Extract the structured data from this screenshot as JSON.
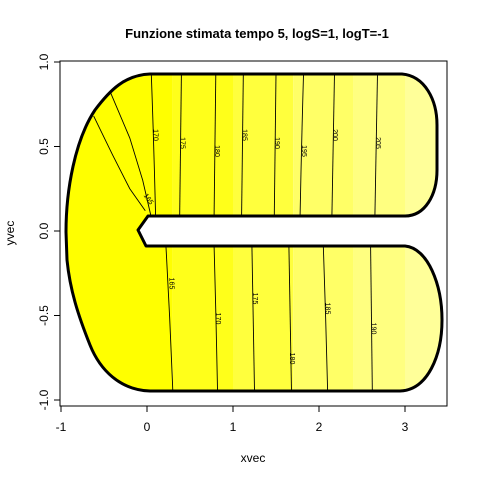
{
  "chart_data": {
    "type": "contour",
    "title": "Funzione stimata tempo 5, logS=1, logT=-1",
    "xlabel": "xvec",
    "ylabel": "yvec",
    "xlim": [
      -1.0,
      3.5
    ],
    "ylim": [
      -1.0,
      1.0
    ],
    "x_ticks": [
      -1,
      0,
      1,
      2,
      3
    ],
    "y_ticks": [
      -1.0,
      -0.5,
      0.0,
      0.5,
      1.0
    ],
    "x_tick_labels": [
      "-1",
      "0",
      "1",
      "2",
      "3"
    ],
    "y_tick_labels": [
      "-1.0",
      "-0.5",
      "0.0",
      "0.5",
      "1.0"
    ],
    "fill_bands": [
      {
        "x_from": -1.0,
        "x_to": 0.3,
        "color": "#ffff00"
      },
      {
        "x_from": 0.3,
        "x_to": 1.0,
        "color": "#ffff1a"
      },
      {
        "x_from": 1.0,
        "x_to": 1.7,
        "color": "#ffff3d"
      },
      {
        "x_from": 1.7,
        "x_to": 2.4,
        "color": "#ffff66"
      },
      {
        "x_from": 2.4,
        "x_to": 3.0,
        "color": "#ffff80"
      },
      {
        "x_from": 3.0,
        "x_to": 3.5,
        "color": "#ffff99"
      }
    ],
    "upper_contours": [
      {
        "level": "170",
        "x_top": 0.05,
        "x_bottom": 0.1
      },
      {
        "level": "175",
        "x_top": 0.4,
        "x_bottom": 0.38
      },
      {
        "level": "180",
        "x_top": 0.8,
        "x_bottom": 0.78
      },
      {
        "level": "185",
        "x_top": 1.12,
        "x_bottom": 1.1
      },
      {
        "level": "190",
        "x_top": 1.5,
        "x_bottom": 1.48
      },
      {
        "level": "195",
        "x_top": 1.82,
        "x_bottom": 1.78
      },
      {
        "level": "200",
        "x_top": 2.18,
        "x_bottom": 2.15
      },
      {
        "level": "205",
        "x_top": 2.68,
        "x_bottom": 2.65
      }
    ],
    "lower_contours": [
      {
        "level": "165",
        "x_top": 0.22,
        "x_bottom": 0.3
      },
      {
        "level": "170",
        "x_top": 0.78,
        "x_bottom": 0.82
      },
      {
        "level": "175",
        "x_top": 1.22,
        "x_bottom": 1.25
      },
      {
        "level": "180",
        "x_top": 1.65,
        "x_bottom": 1.68
      },
      {
        "level": "185",
        "x_top": 2.05,
        "x_bottom": 2.1
      },
      {
        "level": "190",
        "x_top": 2.6,
        "x_bottom": 2.62
      }
    ],
    "left_contours": [
      {
        "level": "",
        "points": [
          [
            -0.62,
            0.68
          ],
          [
            -0.4,
            0.45
          ],
          [
            -0.2,
            0.25
          ],
          [
            -0.02,
            0.12
          ]
        ]
      },
      {
        "level": "165",
        "points": [
          [
            -0.45,
            0.85
          ],
          [
            -0.2,
            0.55
          ],
          [
            -0.05,
            0.3
          ],
          [
            0.05,
            0.08
          ]
        ]
      }
    ],
    "domain_color": "#000000"
  }
}
